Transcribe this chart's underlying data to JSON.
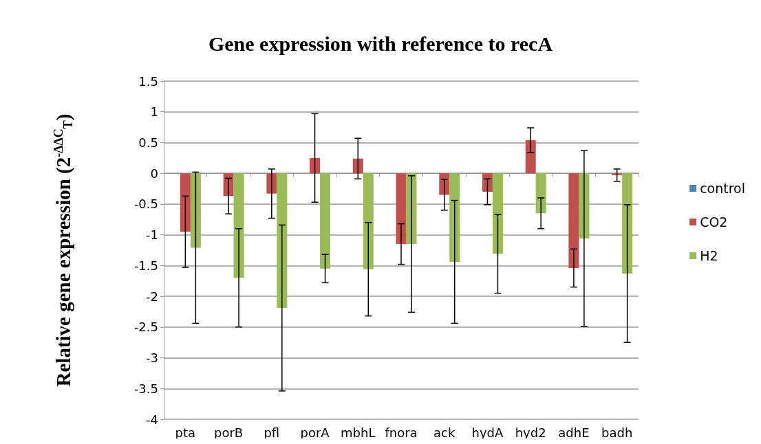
{
  "chart_data": {
    "type": "bar",
    "title": "Gene expression with reference to recA",
    "ylabel": "Relative gene expression (2$^{-ΔΔC}$$_{T}$)",
    "categories": [
      "pta",
      "porB",
      "pfl",
      "porA",
      "mbhL",
      "fnora",
      "ack",
      "hydA",
      "hyd2",
      "adhE",
      "badh"
    ],
    "series": [
      {
        "name": "control",
        "color": "#4f81bd",
        "values": [
          0,
          0,
          0,
          0,
          0,
          0,
          0,
          0,
          0,
          0,
          0
        ]
      },
      {
        "name": "CO2",
        "color": "#c0504d",
        "values": [
          -0.95,
          -0.37,
          -0.33,
          0.25,
          0.24,
          -1.15,
          -0.35,
          -0.3,
          0.54,
          -1.54,
          -0.03
        ],
        "errors": [
          0.58,
          0.29,
          0.4,
          0.72,
          0.33,
          0.33,
          0.25,
          0.21,
          0.2,
          0.31,
          0.1
        ]
      },
      {
        "name": "H2",
        "color": "#9bbb59",
        "values": [
          -1.21,
          -1.7,
          -2.19,
          -1.55,
          -1.56,
          -1.15,
          -1.44,
          -1.31,
          -0.65,
          -1.06,
          -1.63
        ],
        "errors": [
          1.23,
          0.8,
          1.35,
          0.23,
          0.76,
          1.11,
          1.0,
          0.64,
          0.25,
          1.43,
          1.12
        ]
      }
    ],
    "ylim": [
      -4,
      1.5
    ],
    "yticks": [
      -4,
      -3.5,
      -3,
      -2.5,
      -2,
      -1.5,
      -1,
      -0.5,
      0,
      0.5,
      1,
      1.5
    ],
    "grid": "y",
    "legend": "right"
  }
}
